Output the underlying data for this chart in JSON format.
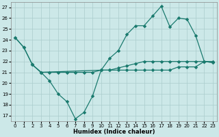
{
  "xlabel": "Humidex (Indice chaleur)",
  "xlim": [
    -0.5,
    23.5
  ],
  "ylim": [
    16.5,
    27.5
  ],
  "yticks": [
    17,
    18,
    19,
    20,
    21,
    22,
    23,
    24,
    25,
    26,
    27
  ],
  "xticks": [
    0,
    1,
    2,
    3,
    4,
    5,
    6,
    7,
    8,
    9,
    10,
    11,
    12,
    13,
    14,
    15,
    16,
    17,
    18,
    19,
    20,
    21,
    22,
    23
  ],
  "bg_color": "#cce8e8",
  "line_color": "#1a7a6e",
  "line1_x": [
    0,
    1,
    2,
    3,
    4,
    5,
    6,
    7,
    8,
    9,
    10,
    11,
    12,
    13,
    14,
    15,
    16,
    17,
    18,
    19,
    20,
    21,
    22,
    23
  ],
  "line1_y": [
    24.2,
    23.3,
    21.7,
    21.0,
    20.2,
    19.0,
    18.3,
    16.7,
    17.3,
    18.8,
    21.2,
    21.2,
    21.2,
    21.2,
    21.2,
    21.2,
    21.2,
    21.2,
    21.2,
    21.5,
    21.5,
    21.5,
    22.0,
    21.9
  ],
  "line2_x": [
    2,
    3,
    4,
    5,
    6,
    7,
    8,
    9,
    10,
    11,
    12,
    13,
    14,
    15,
    16,
    17,
    18,
    19,
    20,
    21,
    22,
    23
  ],
  "line2_y": [
    21.7,
    21.0,
    21.0,
    21.0,
    21.0,
    21.0,
    21.0,
    21.0,
    21.2,
    21.2,
    21.4,
    21.6,
    21.8,
    22.0,
    22.0,
    22.0,
    22.0,
    22.0,
    22.0,
    22.0,
    22.0,
    22.0
  ],
  "line3_x": [
    0,
    1,
    2,
    3,
    10,
    11,
    12,
    13,
    14,
    15,
    16,
    17,
    18,
    19,
    20,
    21,
    22,
    23
  ],
  "line3_y": [
    24.2,
    23.3,
    21.7,
    21.0,
    21.2,
    22.3,
    23.0,
    24.5,
    25.3,
    25.3,
    26.2,
    27.1,
    25.2,
    26.0,
    25.9,
    24.4,
    22.0,
    21.9
  ]
}
